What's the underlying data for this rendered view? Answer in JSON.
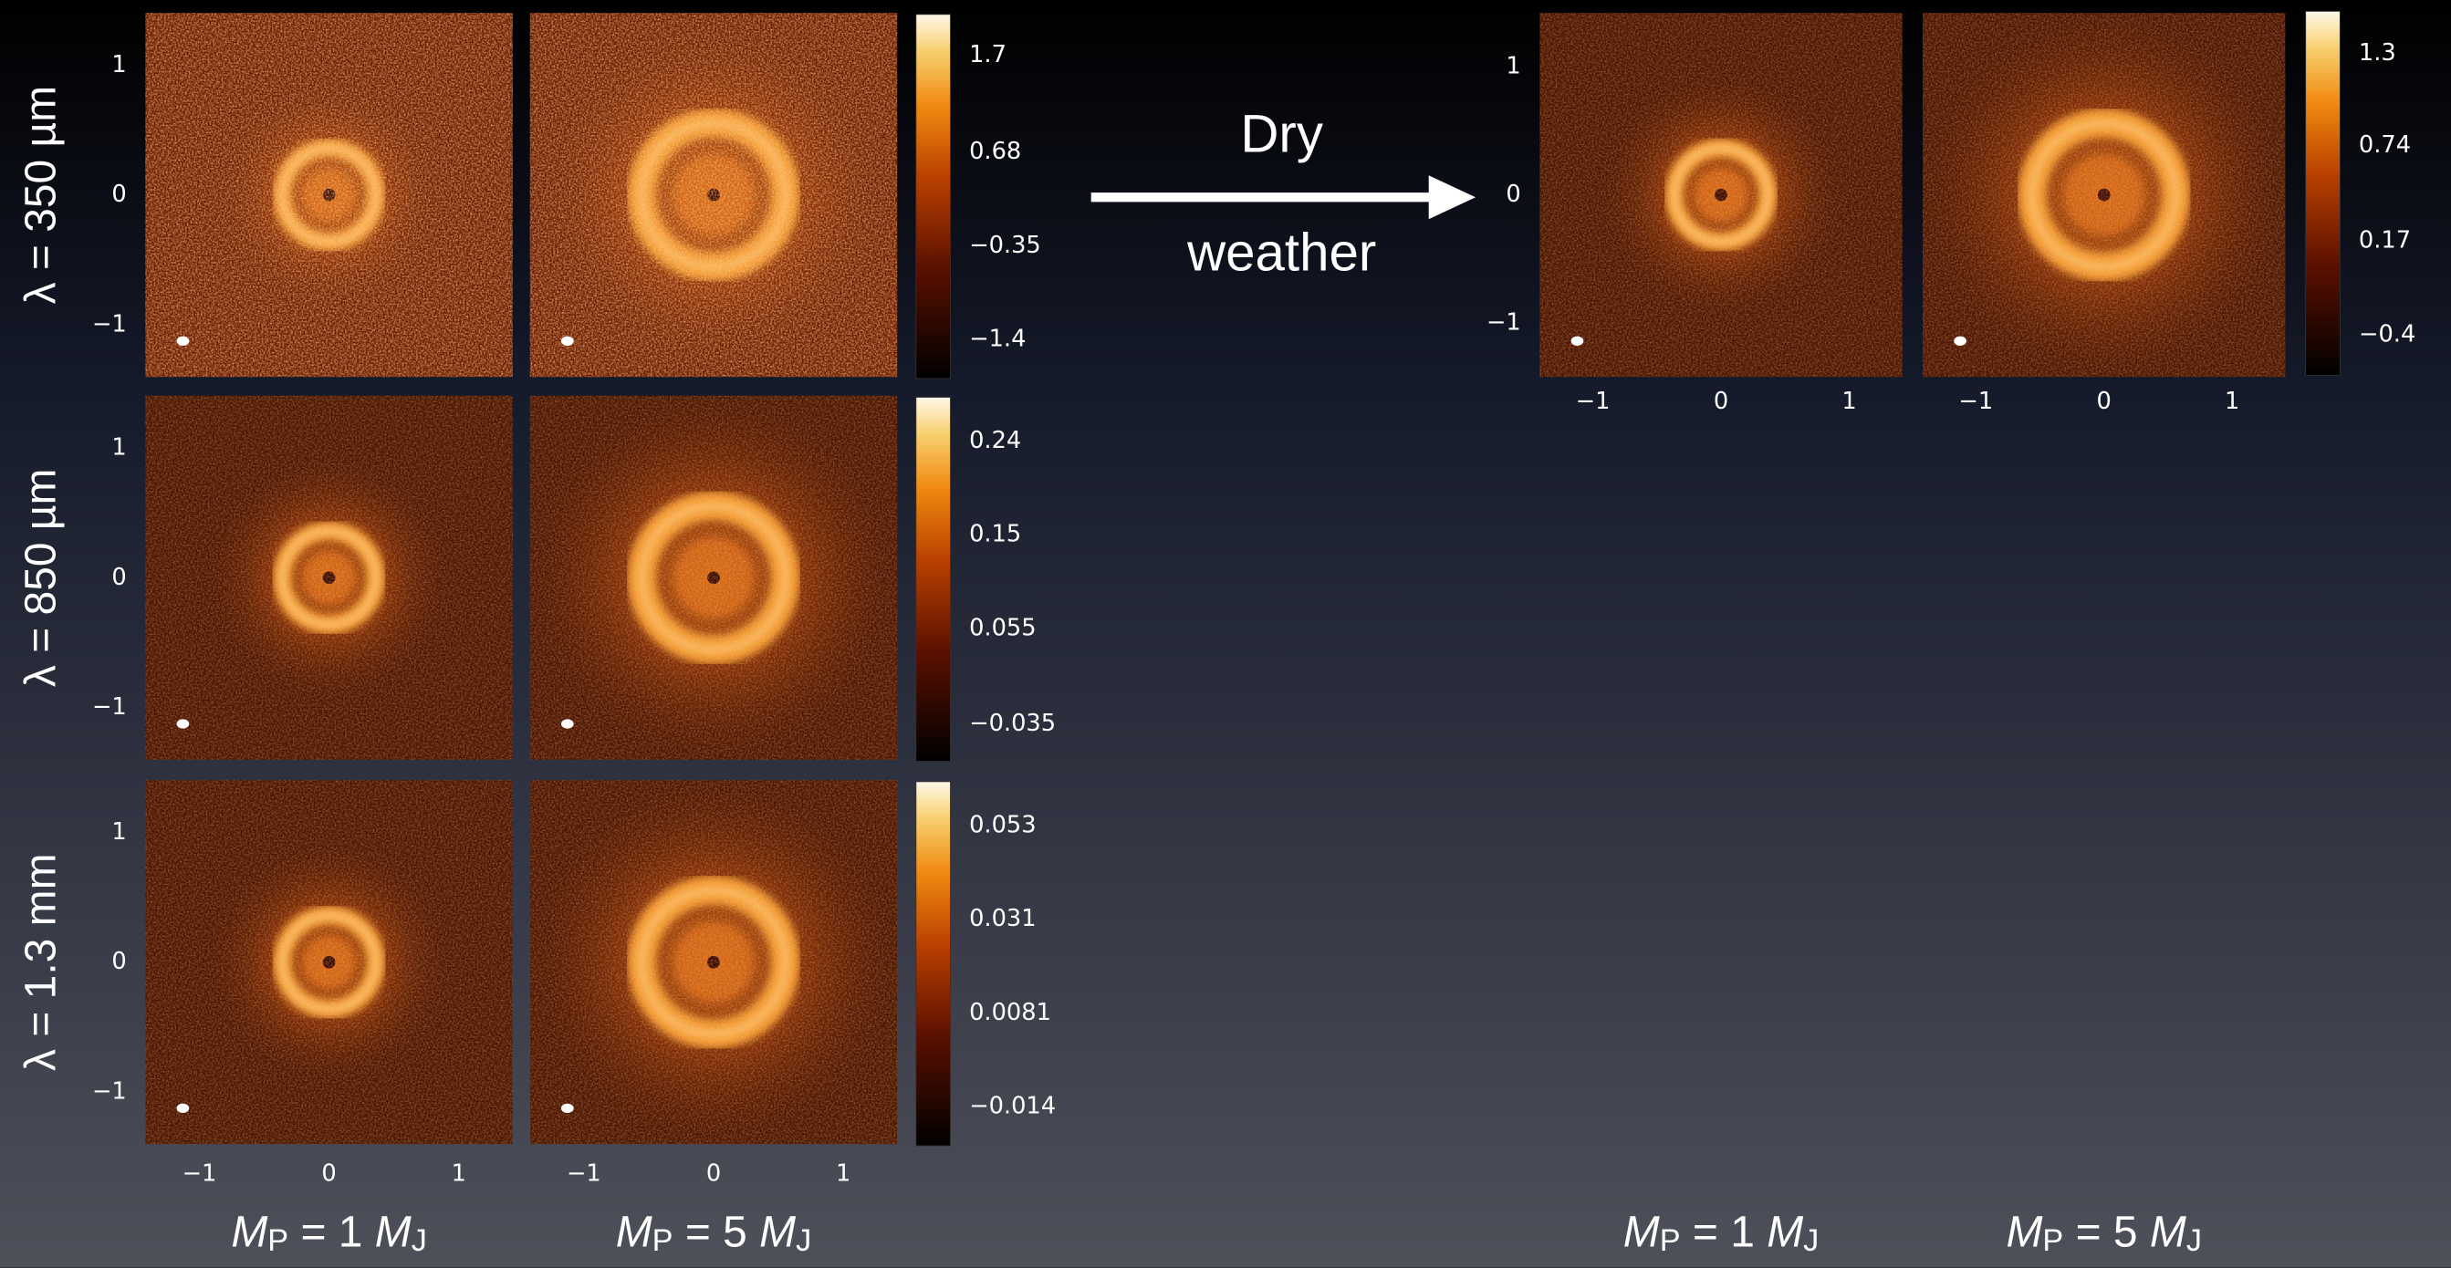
{
  "arrow": {
    "top": "Dry",
    "bottom": "weather"
  },
  "left_grid": {
    "rows": [
      {
        "label": "λ = 350 µm",
        "y_ticks": [
          "1",
          "0",
          "−1"
        ],
        "colorbar_ticks": [
          "1.7",
          "0.68",
          "−0.35",
          "−1.4"
        ]
      },
      {
        "label": "λ = 850 µm",
        "y_ticks": [
          "1",
          "0",
          "−1"
        ],
        "colorbar_ticks": [
          "0.24",
          "0.15",
          "0.055",
          "−0.035"
        ]
      },
      {
        "label": "λ = 1.3 mm",
        "y_ticks": [
          "1",
          "0",
          "−1"
        ],
        "colorbar_ticks": [
          "0.053",
          "0.031",
          "0.0081",
          "−0.014"
        ]
      }
    ],
    "x_ticks": [
      [
        "−1",
        "0",
        "1"
      ],
      [
        "−1",
        "0",
        "1"
      ]
    ],
    "column_labels": [
      {
        "symbol": "M",
        "subscript": "P",
        "relation": " = 1 ",
        "unit": "M",
        "unit_subscript": "J"
      },
      {
        "symbol": "M",
        "subscript": "P",
        "relation": " = 5 ",
        "unit": "M",
        "unit_subscript": "J"
      }
    ]
  },
  "right_grid": {
    "y_ticks": [
      "1",
      "0",
      "−1"
    ],
    "colorbar_ticks": [
      "1.3",
      "0.74",
      "0.17",
      "−0.4"
    ],
    "x_ticks": [
      [
        "−1",
        "0",
        "1"
      ],
      [
        "−1",
        "0",
        "1"
      ]
    ],
    "column_labels": [
      {
        "symbol": "M",
        "subscript": "P",
        "relation": " = 1 ",
        "unit": "M",
        "unit_subscript": "J"
      },
      {
        "symbol": "M",
        "subscript": "P",
        "relation": " = 5 ",
        "unit": "M",
        "unit_subscript": "J"
      }
    ]
  }
}
